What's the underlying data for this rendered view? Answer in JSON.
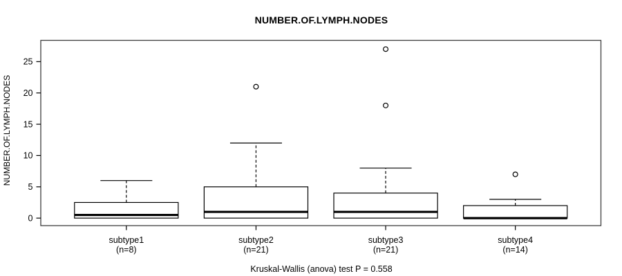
{
  "chart_data": {
    "type": "boxplot",
    "title": "NUMBER.OF.LYMPH.NODES",
    "ylabel": "NUMBER.OF.LYMPH.NODES",
    "xlabel": "",
    "annotation": "Kruskal-Wallis (anova) test P = 0.558",
    "categories": [
      "subtype1",
      "subtype2",
      "subtype3",
      "subtype4"
    ],
    "sample_sizes": [
      8,
      21,
      21,
      14
    ],
    "y_ticks": [
      0,
      5,
      10,
      15,
      20,
      25
    ],
    "ylim": [
      -1.2,
      28.4
    ],
    "grid": false,
    "legend": "none",
    "groups": [
      {
        "label": "subtype1",
        "n": 8,
        "n_label": "(n=8)",
        "whisker_low": 0,
        "q1": 0,
        "median": 0.5,
        "q3": 2.5,
        "whisker_high": 6,
        "outliers": []
      },
      {
        "label": "subtype2",
        "n": 21,
        "n_label": "(n=21)",
        "whisker_low": 0,
        "q1": 0,
        "median": 1,
        "q3": 5,
        "whisker_high": 12,
        "outliers": [
          21
        ]
      },
      {
        "label": "subtype3",
        "n": 21,
        "n_label": "(n=21)",
        "whisker_low": 0,
        "q1": 0,
        "median": 1,
        "q3": 4,
        "whisker_high": 8,
        "outliers": [
          18,
          27
        ]
      },
      {
        "label": "subtype4",
        "n": 14,
        "n_label": "(n=14)",
        "whisker_low": 0,
        "q1": 0,
        "median": 0,
        "q3": 2,
        "whisker_high": 3,
        "outliers": [
          7
        ]
      }
    ],
    "colors": {
      "line": "#000000",
      "border": "#3c3c3c",
      "box_fill": "#ffffff",
      "background": "#ffffff"
    }
  }
}
